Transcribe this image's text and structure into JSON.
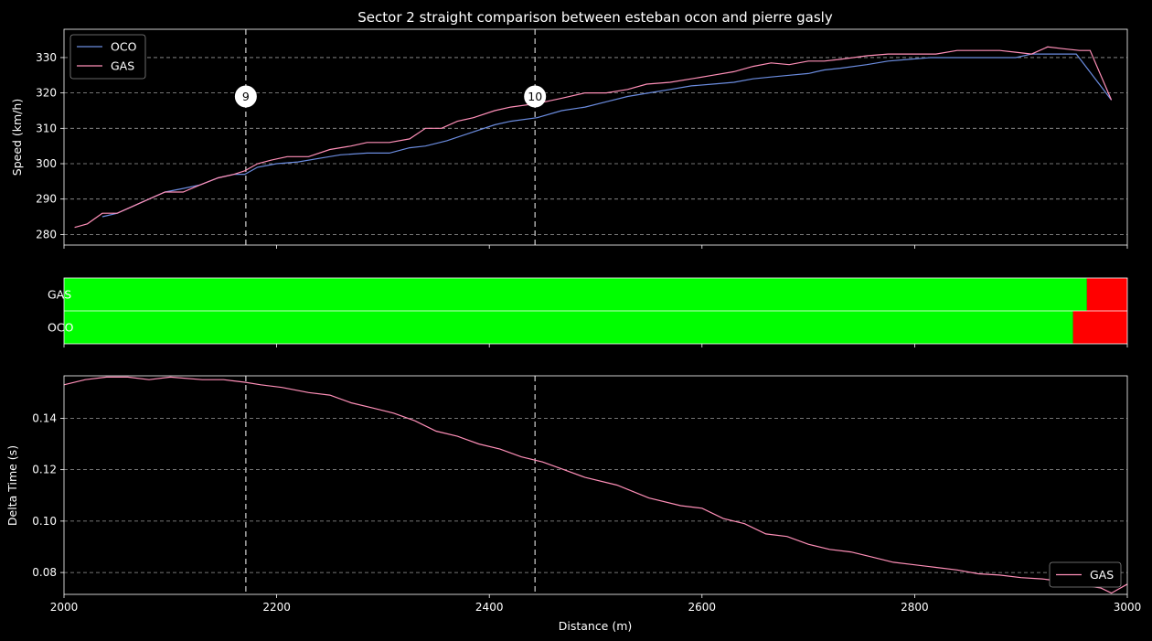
{
  "chart_data": {
    "title": "Sector 2 straight comparison between esteban ocon and pierre gasly",
    "xlabel": "Distance (m)",
    "xlim": [
      2000,
      3000
    ],
    "xticks": [
      2000,
      2200,
      2400,
      2600,
      2800,
      3000
    ],
    "corners": [
      {
        "label": "9",
        "distance": 2171
      },
      {
        "label": "10",
        "distance": 2443
      }
    ],
    "speed_panel": {
      "type": "line",
      "ylabel": "Speed (km/h)",
      "ylim": [
        277,
        338
      ],
      "yticks": [
        280,
        290,
        300,
        310,
        320,
        330
      ],
      "grid": true,
      "legend_position": "top-left",
      "series": [
        {
          "name": "OCO",
          "color": "#6b8cdf",
          "x": [
            2036,
            2050,
            2065,
            2080,
            2095,
            2112,
            2128,
            2145,
            2160,
            2170,
            2182,
            2200,
            2220,
            2240,
            2260,
            2285,
            2306,
            2325,
            2340,
            2360,
            2385,
            2405,
            2420,
            2445,
            2468,
            2490,
            2510,
            2530,
            2550,
            2570,
            2590,
            2610,
            2630,
            2648,
            2665,
            2682,
            2700,
            2715,
            2730,
            2755,
            2775,
            2795,
            2815,
            2835,
            2855,
            2875,
            2895,
            2910,
            2935,
            2952,
            2985
          ],
          "y": [
            285,
            286,
            288,
            290,
            292,
            293,
            294,
            296,
            297,
            297,
            299,
            300,
            300.5,
            301.5,
            302.5,
            303,
            303,
            304.5,
            305,
            306.5,
            309,
            311,
            312,
            313,
            315,
            316,
            317.5,
            319,
            320,
            321,
            322,
            322.5,
            323,
            324,
            324.5,
            325,
            325.5,
            326.5,
            327,
            328,
            329,
            329.5,
            330,
            330,
            330,
            330,
            330,
            331,
            331,
            331,
            318
          ]
        },
        {
          "name": "GAS",
          "color": "#ff8fb8",
          "x": [
            2010,
            2022,
            2036,
            2050,
            2065,
            2080,
            2095,
            2112,
            2128,
            2145,
            2160,
            2170,
            2182,
            2195,
            2210,
            2230,
            2250,
            2270,
            2285,
            2306,
            2325,
            2340,
            2355,
            2370,
            2385,
            2405,
            2420,
            2445,
            2468,
            2490,
            2510,
            2530,
            2548,
            2570,
            2590,
            2610,
            2630,
            2648,
            2665,
            2682,
            2700,
            2715,
            2730,
            2755,
            2775,
            2795,
            2820,
            2840,
            2860,
            2880,
            2895,
            2910,
            2925,
            2940,
            2955,
            2965,
            2985
          ],
          "y": [
            282,
            283,
            286,
            286,
            288,
            290,
            292,
            292,
            294,
            296,
            297,
            298,
            300,
            301,
            302,
            302,
            304,
            305,
            306,
            306,
            307,
            310,
            310,
            312,
            313,
            315,
            316,
            317,
            318.5,
            320,
            320,
            321,
            322.5,
            323,
            324,
            325,
            326,
            327.5,
            328.5,
            328,
            329,
            329,
            329.5,
            330.5,
            331,
            331,
            331,
            332,
            332,
            332,
            331.5,
            331,
            333,
            332.5,
            332,
            332,
            318
          ]
        }
      ]
    },
    "faster_bar_panel": {
      "type": "bar",
      "rows": [
        {
          "label": "GAS",
          "green_until": 2962
        },
        {
          "label": "OCO",
          "green_until": 2949
        }
      ],
      "colors": {
        "faster": "#00ff00",
        "slower": "#ff0000"
      }
    },
    "delta_panel": {
      "type": "line",
      "ylabel": "Delta Time (s)",
      "ylim": [
        0.0715,
        0.1565
      ],
      "yticks": [
        0.08,
        0.1,
        0.12,
        0.14
      ],
      "ytick_labels": [
        "0.08",
        "0.10",
        "0.12",
        "0.14"
      ],
      "grid": true,
      "legend_position": "bottom-right",
      "series": [
        {
          "name": "GAS",
          "color": "#ff8fb8",
          "x": [
            2000,
            2020,
            2040,
            2060,
            2080,
            2100,
            2130,
            2150,
            2170,
            2185,
            2205,
            2230,
            2250,
            2270,
            2290,
            2310,
            2330,
            2350,
            2370,
            2390,
            2410,
            2430,
            2450,
            2470,
            2490,
            2520,
            2550,
            2580,
            2600,
            2620,
            2640,
            2660,
            2680,
            2700,
            2720,
            2740,
            2760,
            2780,
            2800,
            2820,
            2840,
            2860,
            2880,
            2900,
            2920,
            2940,
            2960,
            2975,
            2985,
            3000
          ],
          "y": [
            0.153,
            0.155,
            0.156,
            0.156,
            0.155,
            0.156,
            0.155,
            0.155,
            0.154,
            0.153,
            0.152,
            0.15,
            0.149,
            0.146,
            0.144,
            0.142,
            0.139,
            0.135,
            0.133,
            0.13,
            0.128,
            0.125,
            0.123,
            0.12,
            0.117,
            0.114,
            0.109,
            0.106,
            0.105,
            0.101,
            0.099,
            0.095,
            0.094,
            0.091,
            0.089,
            0.088,
            0.086,
            0.084,
            0.083,
            0.082,
            0.081,
            0.0795,
            0.079,
            0.078,
            0.0775,
            0.0765,
            0.075,
            0.074,
            0.072,
            0.0755
          ]
        }
      ]
    }
  }
}
